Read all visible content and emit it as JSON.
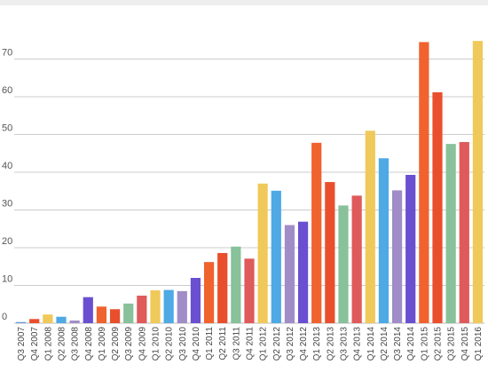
{
  "chart_data": {
    "type": "bar",
    "title": "",
    "xlabel": "",
    "ylabel": "",
    "ylim": [
      0,
      80
    ],
    "yticks": [
      0,
      10,
      20,
      30,
      40,
      50,
      60,
      70
    ],
    "grid": true,
    "legend": "none",
    "categories": [
      "Q3 2007",
      "Q4 2007",
      "Q1 2008",
      "Q2 2008",
      "Q3 2008",
      "Q4 2008",
      "Q1 2009",
      "Q2 2009",
      "Q3 2009",
      "Q4 2009",
      "Q1 2010",
      "Q2 2010",
      "Q3 2010",
      "Q4 2010",
      "Q1 2011",
      "Q2 2011",
      "Q3 2011",
      "Q4 2011",
      "Q1 2012",
      "Q2 2012",
      "Q3 2012",
      "Q4 2012",
      "Q1 2013",
      "Q2 2013",
      "Q3 2013",
      "Q4 2013",
      "Q1 2014",
      "Q2 2014",
      "Q3 2014",
      "Q4 2014",
      "Q1 2015",
      "Q2 2015",
      "Q3 2015",
      "Q4 2015",
      "Q1 2016"
    ],
    "values": [
      0.3,
      1.1,
      2.3,
      1.7,
      0.7,
      6.9,
      4.4,
      3.7,
      5.2,
      7.3,
      8.7,
      8.8,
      8.5,
      12.0,
      16.2,
      18.6,
      20.3,
      17.1,
      37.0,
      35.1,
      26.0,
      26.9,
      47.8,
      37.4,
      31.2,
      33.8,
      51.0,
      43.7,
      35.2,
      39.3,
      74.5,
      61.2,
      47.5,
      48.0,
      74.8
    ],
    "colors": [
      "#5da0d9",
      "#e94f2c",
      "#f0c95b",
      "#4ea9e5",
      "#a08dc7",
      "#6a4fd1",
      "#f0622e",
      "#e94f2c",
      "#88c19a",
      "#df5a5a",
      "#f0c95b",
      "#4ea9e5",
      "#a08dc7",
      "#6a4fd1",
      "#f0622e",
      "#e94f2c",
      "#88c19a",
      "#df5a5a",
      "#f0c95b",
      "#4ea9e5",
      "#a08dc7",
      "#6a4fd1",
      "#f0622e",
      "#e94f2c",
      "#88c19a",
      "#df5a5a",
      "#f0c95b",
      "#4ea9e5",
      "#a08dc7",
      "#6a4fd1",
      "#f0622e",
      "#e94f2c",
      "#88c19a",
      "#df5a5a",
      "#f0c95b"
    ]
  }
}
